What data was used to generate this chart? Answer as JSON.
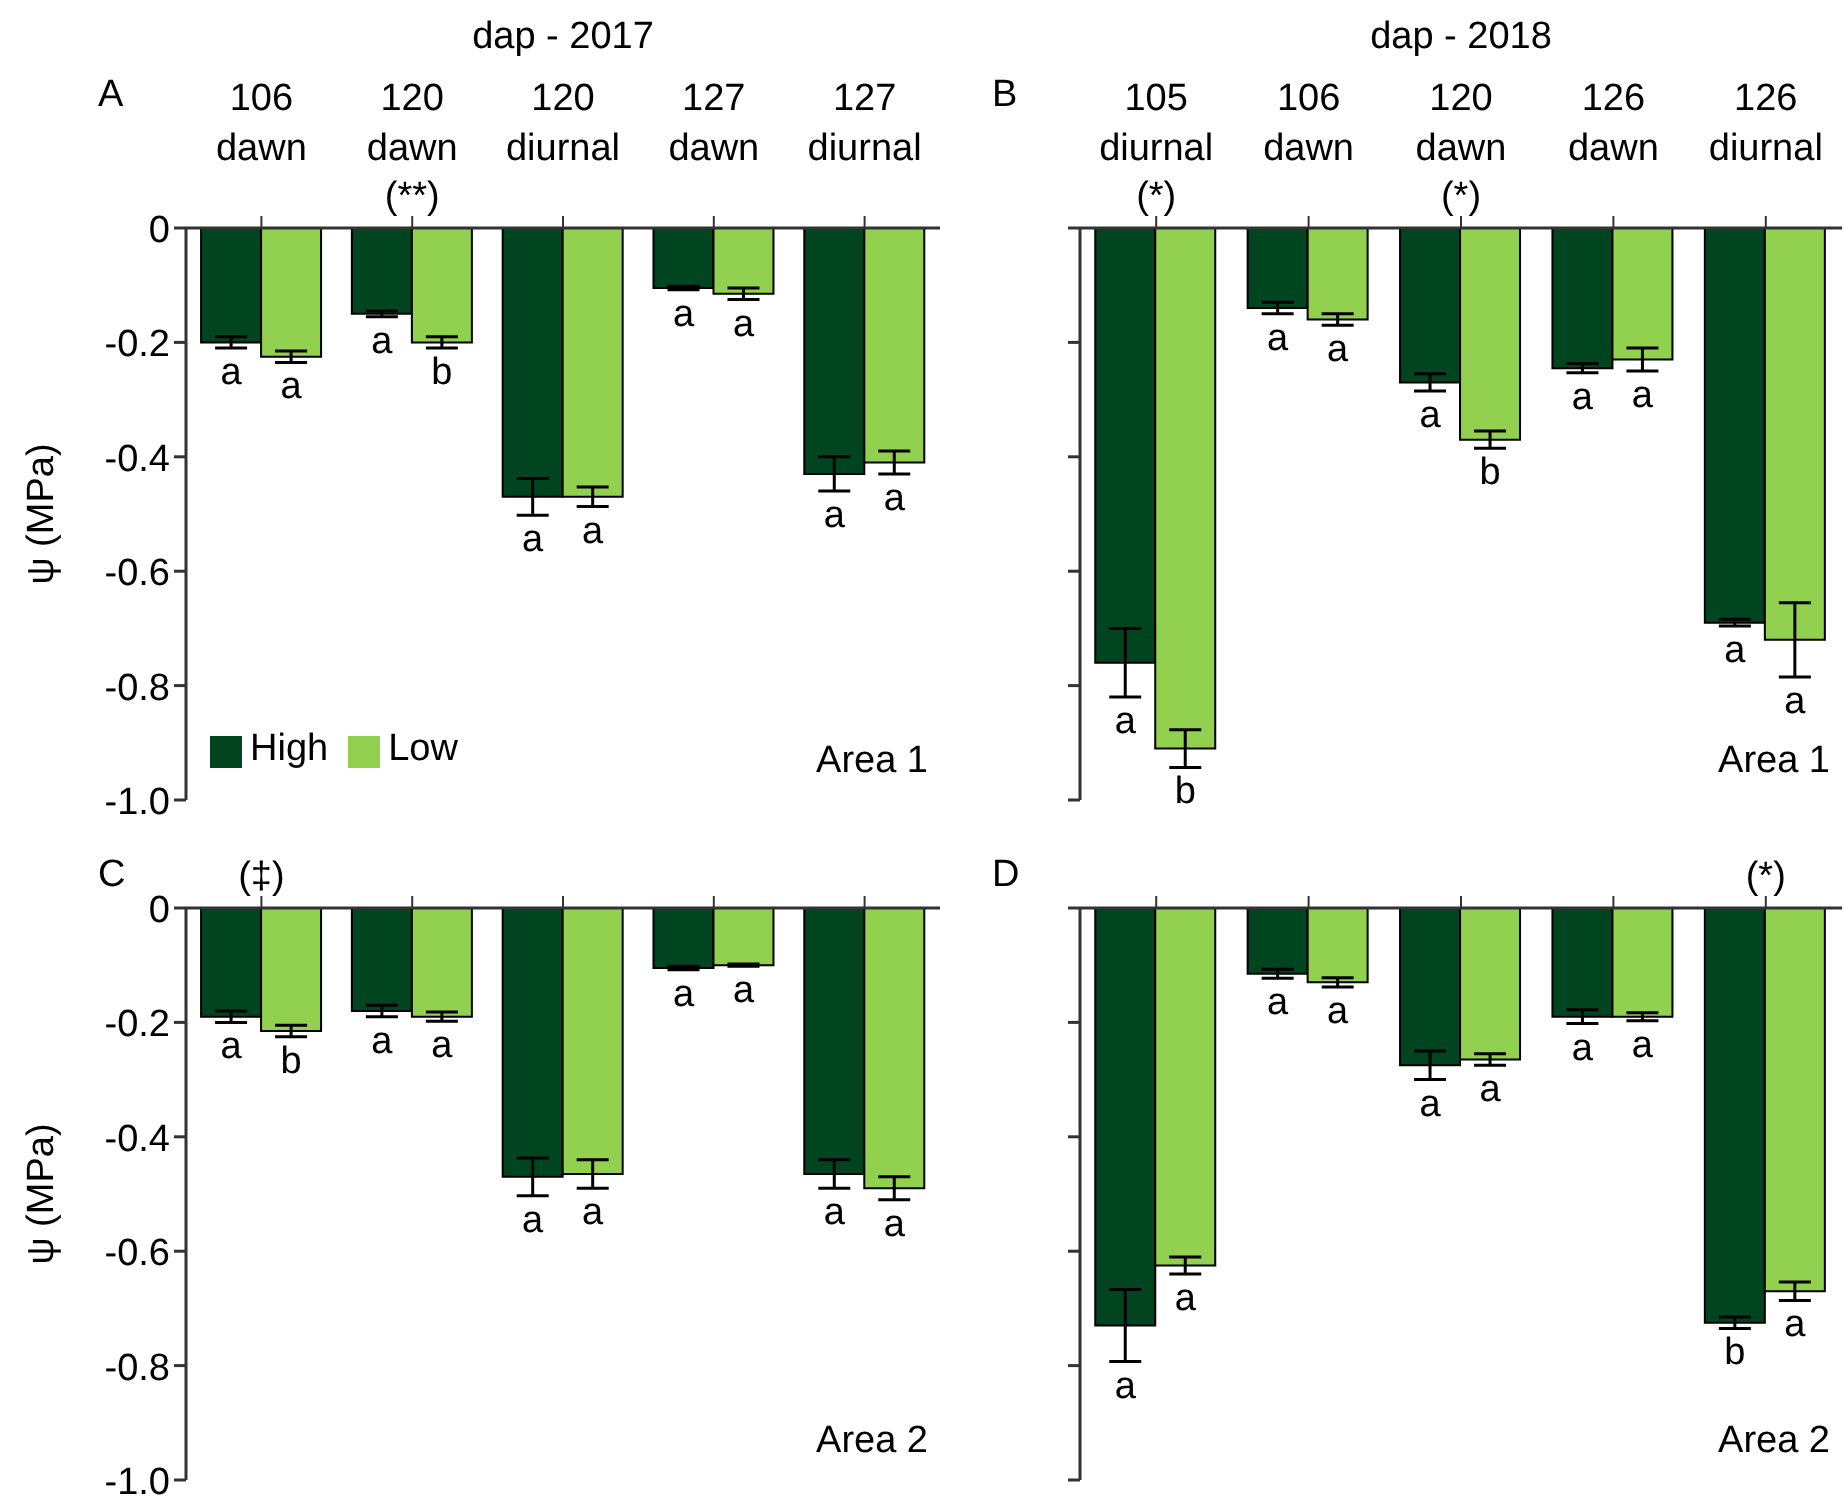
{
  "chart_data": [
    {
      "type": "bar",
      "title": "dap - 2017",
      "ylabel": "ψ (MPa)",
      "categories": [
        "106\ndawn",
        "120\ndawn",
        "120\ndiurnal",
        "127\ndawn",
        "127\ndiurnal"
      ],
      "series": [
        {
          "name": "High",
          "color": "#004420",
          "values": [
            -0.2,
            -0.15,
            -0.47,
            -0.105,
            -0.43
          ],
          "errors": [
            0.01,
            0.005,
            0.032,
            0.003,
            0.03
          ],
          "value_labels": [
            "a",
            "a",
            "a",
            "a",
            "a"
          ]
        },
        {
          "name": "Low",
          "color": "#92d050",
          "values": [
            -0.225,
            -0.2,
            -0.47,
            -0.115,
            -0.41
          ],
          "errors": [
            0.01,
            0.01,
            0.017,
            0.01,
            0.02
          ],
          "value_labels": [
            "a",
            "b",
            "a",
            "a",
            "a"
          ]
        }
      ],
      "ylim": [
        -1,
        0
      ],
      "yticks": [
        0,
        -0.2,
        -0.4,
        -0.6,
        -0.8,
        {
          "value": -1,
          "label": "-1.0"
        }
      ],
      "legend": "bottom left",
      "annotations": [
        "A",
        {
          "text": "(**)",
          "x": "120\ndawn",
          "y": 0
        },
        "Area 1"
      ]
    },
    {
      "type": "bar",
      "title": "dap - 2018",
      "categories": [
        "105\ndiurnal",
        "106\ndawn",
        "120\ndawn",
        "126\ndawn",
        "126\ndiurnal"
      ],
      "series": [
        {
          "color": "#004420",
          "values": [
            -0.76,
            -0.14,
            -0.27,
            -0.245,
            -0.69
          ],
          "errors": [
            0.06,
            0.01,
            0.015,
            0.008,
            0.006
          ],
          "value_labels": [
            "a",
            "a",
            "a",
            "a",
            "a"
          ]
        },
        {
          "color": "#92d050",
          "values": [
            -0.91,
            -0.16,
            -0.37,
            -0.23,
            -0.72
          ],
          "errors": [
            0.033,
            0.01,
            0.015,
            0.02,
            0.065
          ],
          "value_labels": [
            "b",
            "a",
            "b",
            "a",
            "a"
          ]
        }
      ],
      "ylim": [
        -1,
        0
      ],
      "yticks": [
        0,
        -0.2,
        -0.4,
        -0.6,
        -0.8,
        -1
      ],
      "tick_labels": "x",
      "annotations": [
        "B",
        {
          "text": "(*)",
          "x": "105\ndiurnal",
          "y": 0
        },
        {
          "text": "(*)",
          "x": "120\ndawn",
          "y": 0
        },
        "Area 1"
      ]
    },
    {
      "type": "bar",
      "ylabel": "ψ (MPa)",
      "categories": [
        "106\ndawn",
        "120\ndawn",
        "120\ndiurnal",
        "127\ndawn",
        "127\ndiurnal"
      ],
      "series": [
        {
          "color": "#004420",
          "values": [
            -0.19,
            -0.18,
            -0.47,
            -0.105,
            -0.465
          ],
          "errors": [
            0.01,
            0.01,
            0.033,
            0.003,
            0.025
          ],
          "value_labels": [
            "a",
            "a",
            "a",
            "a",
            "a"
          ]
        },
        {
          "color": "#92d050",
          "values": [
            -0.215,
            -0.19,
            -0.465,
            -0.1,
            -0.49
          ],
          "errors": [
            0.01,
            0.008,
            0.025,
            0.002,
            0.02
          ],
          "value_labels": [
            "b",
            "a",
            "a",
            "a",
            "a"
          ]
        }
      ],
      "ylim": [
        -1,
        0
      ],
      "yticks": [
        0,
        -0.2,
        -0.4,
        -0.6,
        -0.8,
        {
          "value": -1,
          "label": "-1.0"
        }
      ],
      "tick_labels": "y",
      "annotations": [
        "C",
        {
          "text": "(‡)",
          "x": "106\ndawn",
          "y": 0
        },
        "Area 2"
      ]
    },
    {
      "type": "bar",
      "categories": [
        "105\ndiurnal",
        "106\ndawn",
        "120\ndawn",
        "126\ndawn",
        "126\ndiurnal"
      ],
      "series": [
        {
          "color": "#004420",
          "values": [
            -0.73,
            -0.115,
            -0.275,
            -0.19,
            -0.725
          ],
          "errors": [
            0.063,
            0.008,
            0.025,
            0.012,
            0.01
          ],
          "value_labels": [
            "a",
            "a",
            "a",
            "a",
            "b"
          ]
        },
        {
          "color": "#92d050",
          "values": [
            -0.625,
            -0.13,
            -0.265,
            -0.19,
            -0.67
          ],
          "errors": [
            0.015,
            0.008,
            0.01,
            0.007,
            0.016
          ],
          "value_labels": [
            "a",
            "a",
            "a",
            "a",
            "a"
          ]
        }
      ],
      "ylim": [
        -1,
        0
      ],
      "yticks": [
        0,
        -0.2,
        -0.4,
        -0.6,
        -0.8,
        -1
      ],
      "tick_labels": false,
      "annotations": [
        "D",
        {
          "text": "(*)",
          "x": "126\ndiurnal",
          "y": 0
        },
        "Area 2"
      ]
    }
  ]
}
